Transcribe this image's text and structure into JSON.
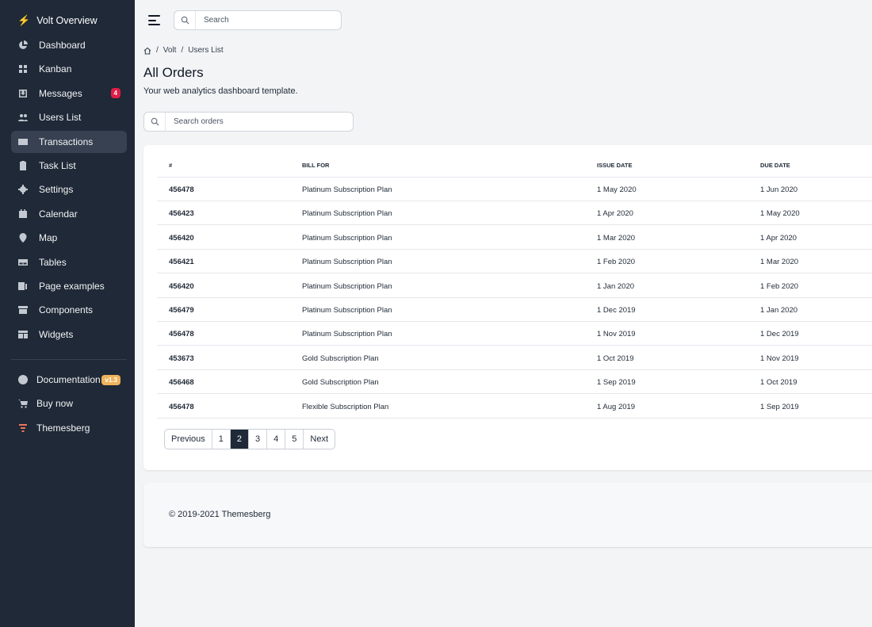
{
  "sidebar": {
    "brand": "Volt Overview",
    "items": [
      {
        "label": "Dashboard",
        "icon": "chart-pie-icon"
      },
      {
        "label": "Kanban",
        "icon": "grid-icon"
      },
      {
        "label": "Messages",
        "icon": "inbox-icon",
        "badge": "4"
      },
      {
        "label": "Users List",
        "icon": "users-icon"
      },
      {
        "label": "Transactions",
        "icon": "credit-card-icon",
        "active": true
      },
      {
        "label": "Task List",
        "icon": "clipboard-icon"
      },
      {
        "label": "Settings",
        "icon": "gear-icon"
      },
      {
        "label": "Calendar",
        "icon": "calendar-icon"
      },
      {
        "label": "Map",
        "icon": "map-pin-icon"
      },
      {
        "label": "Tables",
        "icon": "table-icon"
      },
      {
        "label": "Page examples",
        "icon": "page-icon"
      },
      {
        "label": "Components",
        "icon": "archive-icon"
      },
      {
        "label": "Widgets",
        "icon": "template-icon"
      }
    ],
    "bottom": [
      {
        "label": "Documentation",
        "icon": "question-icon",
        "badge": "v1.3"
      },
      {
        "label": "Buy now",
        "icon": "cart-icon"
      },
      {
        "label": "Themesberg",
        "icon": "themesberg-logo-icon"
      }
    ]
  },
  "topbar": {
    "search_placeholder": "Search"
  },
  "breadcrumb": [
    "Volt",
    "Users List"
  ],
  "page": {
    "title": "All Orders",
    "subtitle": "Your web analytics dashboard template.",
    "search_placeholder": "Search orders"
  },
  "table": {
    "headers": [
      "#",
      "BILL FOR",
      "ISSUE DATE",
      "DUE DATE"
    ],
    "rows": [
      [
        "456478",
        "Platinum Subscription Plan",
        "1 May 2020",
        "1 Jun 2020"
      ],
      [
        "456423",
        "Platinum Subscription Plan",
        "1 Apr 2020",
        "1 May 2020"
      ],
      [
        "456420",
        "Platinum Subscription Plan",
        "1 Mar 2020",
        "1 Apr 2020"
      ],
      [
        "456421",
        "Platinum Subscription Plan",
        "1 Feb 2020",
        "1 Mar 2020"
      ],
      [
        "456420",
        "Platinum Subscription Plan",
        "1 Jan 2020",
        "1 Feb 2020"
      ],
      [
        "456479",
        "Platinum Subscription Plan",
        "1 Dec 2019",
        "1 Jan 2020"
      ],
      [
        "456478",
        "Platinum Subscription Plan",
        "1 Nov 2019",
        "1 Dec 2019"
      ],
      [
        "453673",
        "Gold Subscription Plan",
        "1 Oct 2019",
        "1 Nov 2019"
      ],
      [
        "456468",
        "Gold Subscription Plan",
        "1 Sep 2019",
        "1 Oct 2019"
      ],
      [
        "456478",
        "Flexible Subscription Plan",
        "1 Aug 2019",
        "1 Sep 2019"
      ]
    ]
  },
  "pagination": {
    "items": [
      "Previous",
      "1",
      "2",
      "3",
      "4",
      "5",
      "Next"
    ],
    "current": "2"
  },
  "footer": {
    "text": "© 2019-2021 Themesberg"
  },
  "colors": {
    "sidebar": "#1f2937",
    "badge": "#e11d48",
    "version_badge": "#f0b35b",
    "bolt": "#f0b35b"
  }
}
